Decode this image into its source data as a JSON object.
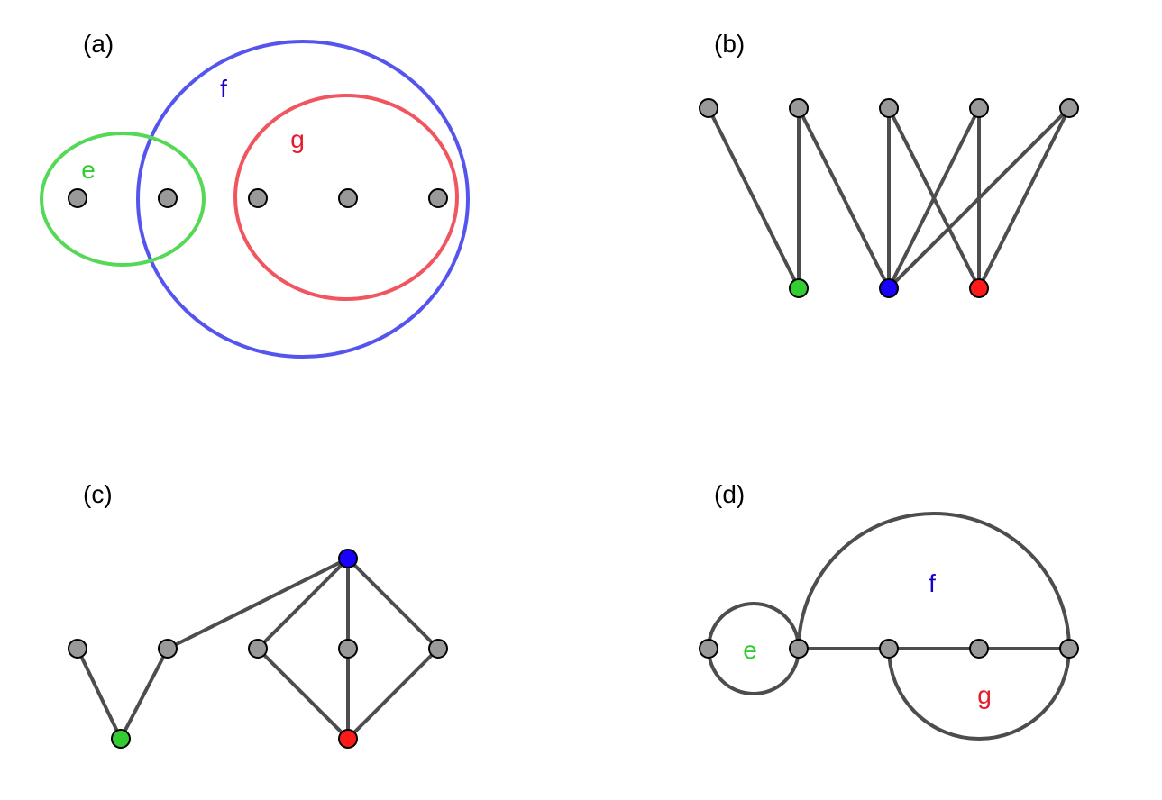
{
  "colors": {
    "node_default": "#999999",
    "node_green": "#33cc33",
    "node_blue": "#1a00ff",
    "node_red": "#ff1a1a",
    "edge": "#4d4d4d",
    "set_e": "#55d855",
    "set_f": "#5555ee",
    "set_g": "#f05560",
    "label_e": "#33cc33",
    "label_f": "#1a00cc",
    "label_g": "#e8192c"
  },
  "panels": {
    "a": {
      "label": "(a)",
      "sets": {
        "e": "e",
        "f": "f",
        "g": "g"
      }
    },
    "b": {
      "label": "(b)"
    },
    "c": {
      "label": "(c)"
    },
    "d": {
      "label": "(d)",
      "arcs": {
        "e": "e",
        "f": "f",
        "g": "g"
      }
    }
  }
}
